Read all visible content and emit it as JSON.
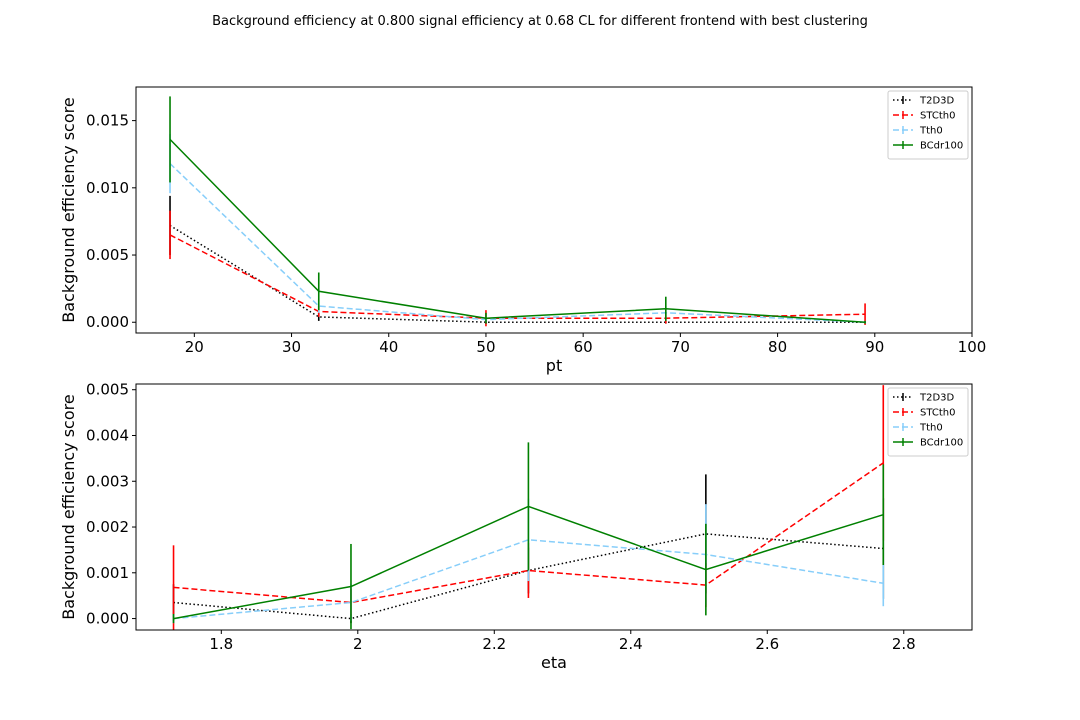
{
  "figure": {
    "title": "Background efficiency at 0.800 signal efficiency at 0.68 CL for different frontend with best clustering"
  },
  "chart_data": [
    {
      "type": "line",
      "xlabel": "pt",
      "ylabel": "Background efficiency score",
      "xlim": [
        14,
        100
      ],
      "ylim": [
        -0.0008,
        0.0175
      ],
      "xticks": [
        20,
        30,
        40,
        50,
        60,
        70,
        80,
        90,
        100
      ],
      "yticks": [
        0.0,
        0.005,
        0.01,
        0.015
      ],
      "ytick_labels": [
        "0.000",
        "0.005",
        "0.010",
        "0.015"
      ],
      "grid": false,
      "legend": "top-right",
      "x": [
        17.5,
        32.8,
        50.0,
        68.5,
        89.0
      ],
      "series": [
        {
          "name": "T2D3D",
          "color": "#000000",
          "dash": "dotted",
          "values": [
            0.0072,
            0.0004,
            0.0,
            0.0,
            0.0
          ],
          "errors": [
            0.0022,
            0.0003,
            0.0001,
            0.0001,
            0.0001
          ]
        },
        {
          "name": "STCth0",
          "color": "#ff0000",
          "dash": "dashed",
          "values": [
            0.0065,
            0.0008,
            0.0003,
            0.0003,
            0.0006
          ],
          "errors": [
            0.0018,
            0.0004,
            0.0006,
            0.0004,
            0.0008
          ]
        },
        {
          "name": "Tth0",
          "color": "#87cefa",
          "dash": "dashed",
          "values": [
            0.0118,
            0.0012,
            0.0002,
            0.0007,
            0.0
          ],
          "errors": [
            0.0022,
            0.0005,
            0.0002,
            0.0005,
            0.0001
          ]
        },
        {
          "name": "BCdr100",
          "color": "#008000",
          "dash": "solid",
          "values": [
            0.0136,
            0.0023,
            0.0003,
            0.001,
            0.0
          ],
          "errors": [
            0.0032,
            0.0014,
            0.0004,
            0.0009,
            0.0001
          ]
        }
      ]
    },
    {
      "type": "line",
      "xlabel": "eta",
      "ylabel": "Background efficiency score",
      "xlim": [
        1.675,
        2.9
      ],
      "ylim": [
        -0.00025,
        0.005125
      ],
      "xticks": [
        1.8,
        2.0,
        2.2,
        2.4,
        2.6,
        2.8
      ],
      "yticks": [
        0.0,
        0.001,
        0.002,
        0.003,
        0.004,
        0.005
      ],
      "ytick_labels": [
        "0.000",
        "0.001",
        "0.002",
        "0.003",
        "0.004",
        "0.005"
      ],
      "grid": false,
      "legend": "top-right",
      "x": [
        1.73,
        1.99,
        2.25,
        2.51,
        2.77
      ],
      "series": [
        {
          "name": "T2D3D",
          "color": "#000000",
          "dash": "dotted",
          "values": [
            0.00035,
            0.0,
            0.00105,
            0.00185,
            0.00153
          ],
          "errors": [
            0.0004,
            0.0001,
            0.0005,
            0.0013,
            0.0011
          ]
        },
        {
          "name": "STCth0",
          "color": "#ff0000",
          "dash": "dashed",
          "values": [
            0.00068,
            0.00035,
            0.00105,
            0.00073,
            0.0034
          ],
          "errors": [
            0.00092,
            0.0003,
            0.0006,
            0.00048,
            0.0017
          ]
        },
        {
          "name": "Tth0",
          "color": "#87cefa",
          "dash": "dashed",
          "values": [
            0.0,
            0.00035,
            0.00172,
            0.0014,
            0.00077
          ],
          "errors": [
            0.0001,
            0.0004,
            0.0009,
            0.0011,
            0.0005
          ]
        },
        {
          "name": "BCdr100",
          "color": "#008000",
          "dash": "solid",
          "values": [
            0.0,
            0.0007,
            0.00245,
            0.00107,
            0.00227
          ],
          "errors": [
            0.0001,
            0.00093,
            0.0014,
            0.001,
            0.0011
          ]
        }
      ]
    }
  ]
}
